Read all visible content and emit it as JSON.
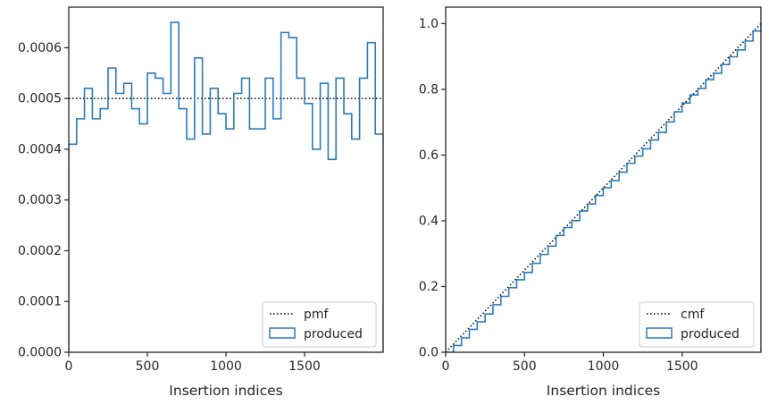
{
  "chart_data": [
    {
      "type": "histogram-step",
      "xlabel": "Insertion indices",
      "ylabel": "",
      "xlim": [
        0,
        2000
      ],
      "ylim": [
        0,
        0.00068
      ],
      "xticks": [
        0,
        500,
        1000,
        1500
      ],
      "xtick_labels": [
        "0",
        "500",
        "1000",
        "1500"
      ],
      "yticks": [
        0,
        0.0001,
        0.0002,
        0.0003,
        0.0004,
        0.0005,
        0.0006
      ],
      "ytick_labels": [
        "0.0000",
        "0.0001",
        "0.0002",
        "0.0003",
        "0.0004",
        "0.0005",
        "0.0006"
      ],
      "grid": false,
      "legend_position": "bottom-right",
      "bin_width": 50,
      "series": [
        {
          "name": "pmf",
          "style": "dotted",
          "color": "#000000",
          "x": [
            0,
            2000
          ],
          "values": [
            0.0005,
            0.0005
          ]
        },
        {
          "name": "produced",
          "style": "step",
          "color": "#2b7bba",
          "bin_edges": [
            0,
            50,
            100,
            150,
            200,
            250,
            300,
            350,
            400,
            450,
            500,
            550,
            600,
            650,
            700,
            750,
            800,
            850,
            900,
            950,
            1000,
            1050,
            1100,
            1150,
            1200,
            1250,
            1300,
            1350,
            1400,
            1450,
            1500,
            1550,
            1600,
            1650,
            1700,
            1750,
            1800,
            1850,
            1900,
            1950,
            2000
          ],
          "values": [
            0.00041,
            0.00046,
            0.00052,
            0.00046,
            0.00048,
            0.00056,
            0.00051,
            0.00053,
            0.00048,
            0.00045,
            0.00055,
            0.00054,
            0.00051,
            0.00065,
            0.00048,
            0.00042,
            0.00058,
            0.00043,
            0.00052,
            0.00047,
            0.00044,
            0.00051,
            0.00054,
            0.00044,
            0.00044,
            0.00054,
            0.00046,
            0.00063,
            0.00062,
            0.00054,
            0.00049,
            0.0004,
            0.00053,
            0.00038,
            0.00054,
            0.00047,
            0.00042,
            0.00054,
            0.00061,
            0.00043
          ]
        }
      ]
    },
    {
      "type": "cumulative-step",
      "xlabel": "Insertion indices",
      "ylabel": "",
      "xlim": [
        0,
        2000
      ],
      "ylim": [
        0,
        1.05
      ],
      "xticks": [
        0,
        500,
        1000,
        1500
      ],
      "xtick_labels": [
        "0",
        "500",
        "1000",
        "1500"
      ],
      "yticks": [
        0,
        0.2,
        0.4,
        0.6,
        0.8,
        1.0
      ],
      "ytick_labels": [
        "0.0",
        "0.2",
        "0.4",
        "0.6",
        "0.8",
        "1.0"
      ],
      "grid": false,
      "legend_position": "bottom-right",
      "series": [
        {
          "name": "cmf",
          "style": "dotted",
          "color": "#000000",
          "x": [
            0,
            2000
          ],
          "values": [
            0,
            1
          ]
        },
        {
          "name": "produced",
          "style": "step",
          "color": "#2b7bba",
          "x": [
            0,
            50,
            100,
            150,
            200,
            250,
            300,
            350,
            400,
            450,
            500,
            550,
            600,
            650,
            700,
            750,
            800,
            850,
            900,
            950,
            1000,
            1050,
            1100,
            1150,
            1200,
            1250,
            1300,
            1350,
            1400,
            1450,
            1500,
            1550,
            1600,
            1650,
            1700,
            1750,
            1800,
            1850,
            1900,
            1950,
            2000
          ],
          "values": [
            0,
            0.0205,
            0.0435,
            0.0695,
            0.0925,
            0.1165,
            0.1445,
            0.17,
            0.1965,
            0.2205,
            0.243,
            0.2705,
            0.2975,
            0.323,
            0.3555,
            0.3795,
            0.4005,
            0.4295,
            0.451,
            0.477,
            0.5005,
            0.5225,
            0.548,
            0.575,
            0.597,
            0.619,
            0.646,
            0.669,
            0.7005,
            0.7315,
            0.7585,
            0.783,
            0.803,
            0.8295,
            0.8485,
            0.8755,
            0.899,
            0.92,
            0.947,
            0.9775,
            0.999
          ]
        }
      ]
    }
  ]
}
